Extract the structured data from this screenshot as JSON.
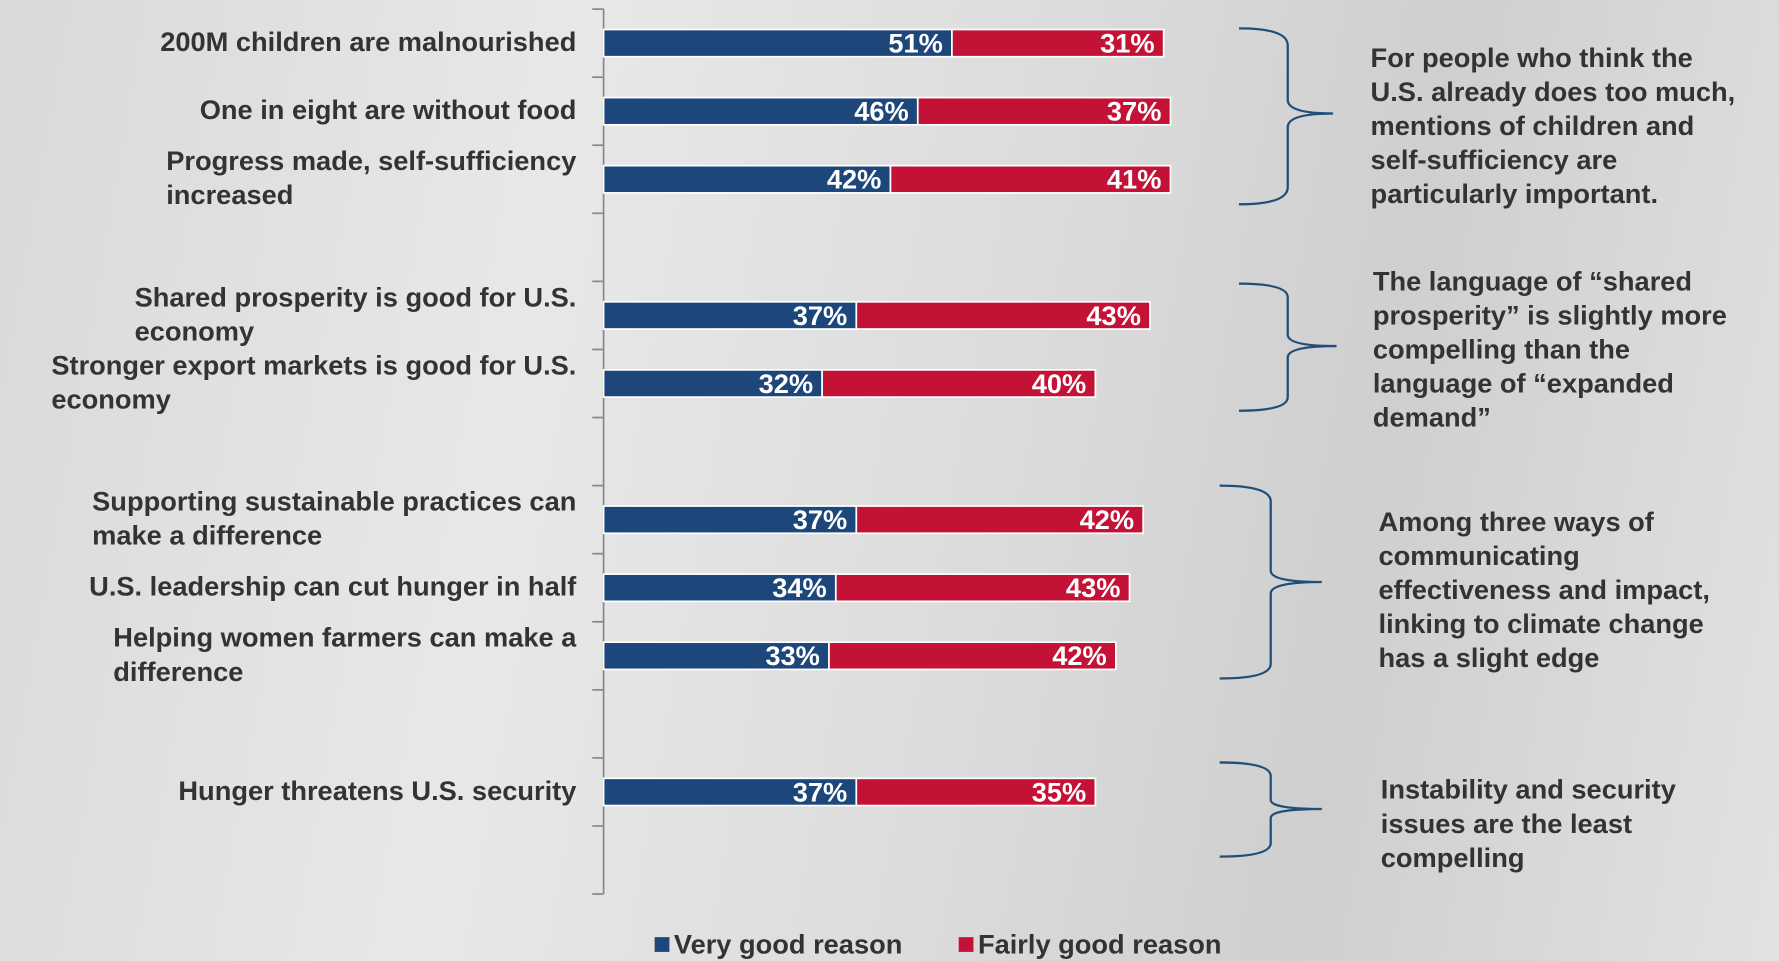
{
  "chart_data": {
    "type": "stacked-bar-horizontal",
    "categories": [
      "200M children are malnourished",
      "One in eight are without food",
      "Progress made, self-sufficiency\nincreased",
      null,
      "Shared prosperity is good for U.S.\neconomy",
      "Stronger export markets is good for U.S.\neconomy",
      null,
      "Supporting sustainable practices can\nmake a difference",
      "U.S. leadership can cut hunger in half",
      "Helping women farmers can make a\ndifference",
      null,
      "Hunger threatens U.S. security",
      null
    ],
    "series": [
      {
        "name": "Very good reason",
        "color": "#1d477a",
        "values": [
          51,
          46,
          42,
          null,
          37,
          32,
          null,
          37,
          34,
          33,
          null,
          37,
          null
        ],
        "value_labels": [
          "51%",
          "46%",
          "42%",
          null,
          "37%",
          "32%",
          null,
          "37%",
          "34%",
          "33%",
          null,
          "37%",
          null
        ]
      },
      {
        "name": "Fairly good reason",
        "color": "#c41237",
        "values": [
          31,
          37,
          41,
          null,
          43,
          40,
          null,
          42,
          43,
          42,
          null,
          35,
          null
        ],
        "value_labels": [
          "31%",
          "37%",
          "41%",
          null,
          "43%",
          "40%",
          null,
          "42%",
          "43%",
          "42%",
          null,
          "35%",
          null
        ]
      }
    ],
    "xlim": [
      0,
      100
    ],
    "annotations": [
      "For people who think the\nU.S. already does too much,\nmentions of children and\nself-sufficiency are\nparticularly important.",
      "The language of “shared\nprosperity” is slightly more\ncompelling than the\nlanguage of “expanded\ndemand”",
      "Among three ways of\ncommunicating\neffectiveness and impact,\nlinking to climate change\nhas a slight edge",
      "Instability and security\nissues are the least\ncompelling"
    ]
  }
}
